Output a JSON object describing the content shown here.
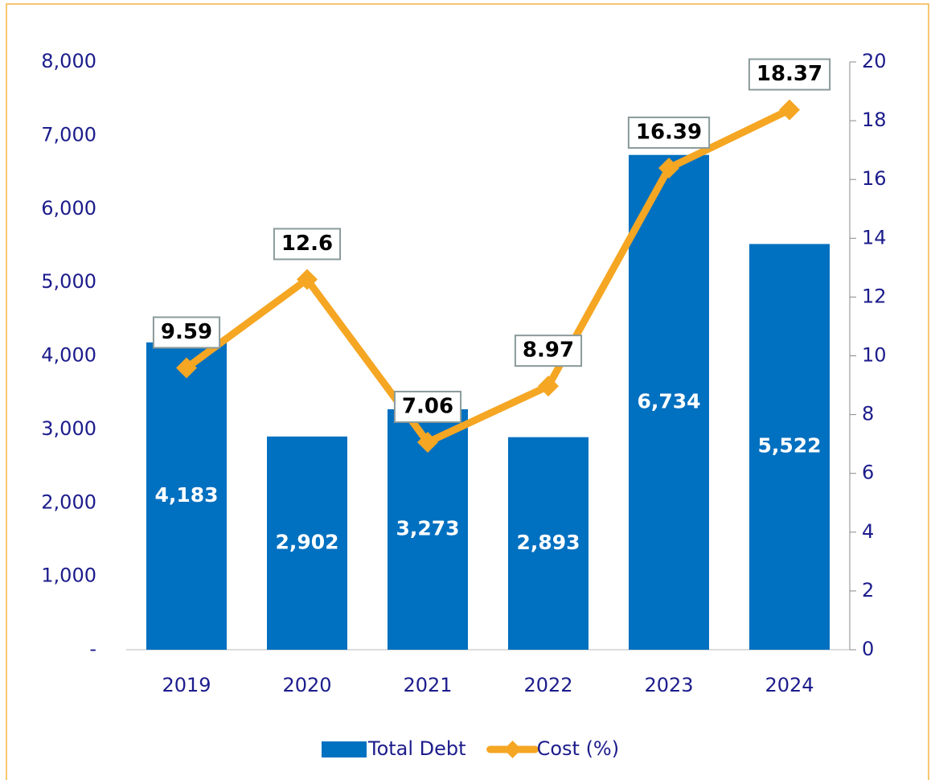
{
  "chart_data": {
    "type": "combo",
    "categories": [
      "2019",
      "2020",
      "2021",
      "2022",
      "2023",
      "2024"
    ],
    "series": [
      {
        "name": "Total Debt",
        "type": "bar",
        "color": "#0070c0",
        "values": [
          4183,
          2902,
          3273,
          2893,
          6734,
          5522
        ],
        "value_labels": [
          "4,183",
          "2,902",
          "3,273",
          "2,893",
          "6,734",
          "5,522"
        ]
      },
      {
        "name": "Cost (%)",
        "type": "line",
        "axis": "y2",
        "color": "#f5a623",
        "values": [
          9.59,
          12.6,
          7.06,
          8.97,
          16.39,
          18.37
        ]
      }
    ],
    "ylim": [
      0,
      8000
    ],
    "yticks": [
      {
        "value": 0,
        "label": "-"
      },
      {
        "value": 1000,
        "label": "1,000"
      },
      {
        "value": 2000,
        "label": "2,000"
      },
      {
        "value": 3000,
        "label": "3,000"
      },
      {
        "value": 4000,
        "label": "4,000"
      },
      {
        "value": 5000,
        "label": "5,000"
      },
      {
        "value": 6000,
        "label": "6,000"
      },
      {
        "value": 7000,
        "label": "7,000"
      },
      {
        "value": 8000,
        "label": "8,000"
      }
    ],
    "y2lim": [
      0,
      20
    ],
    "y2ticks": [
      0,
      2,
      4,
      6,
      8,
      10,
      12,
      14,
      16,
      18,
      20
    ],
    "grid": false,
    "legend": "bottom"
  }
}
